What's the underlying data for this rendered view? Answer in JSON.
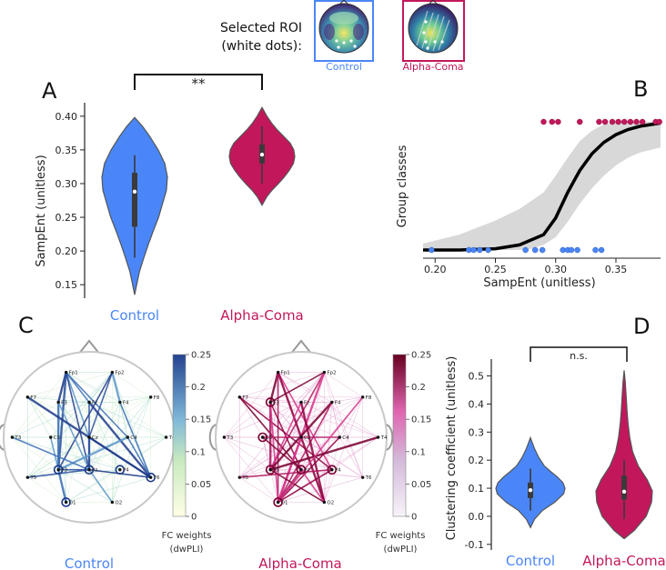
{
  "roi": {
    "title_line1": "Selected ROI",
    "title_line2": "(white dots):",
    "control_label": "Control",
    "coma_label": "Alpha-Coma"
  },
  "colors": {
    "control": "#4a86f7",
    "coma": "#c2185b",
    "curve": "#000000",
    "band": "#d8d8d8"
  },
  "chart_data": [
    {
      "id": "A",
      "type": "violin",
      "panel_label": "A",
      "ylabel": "SampEnt (unitless)",
      "ylim": [
        0.13,
        0.42
      ],
      "yticks": [
        0.15,
        0.2,
        0.25,
        0.3,
        0.35,
        0.4
      ],
      "ytick_labels": [
        "0.15",
        "0.20",
        "0.25",
        "0.30",
        "0.35",
        "0.40"
      ],
      "categories": [
        "Control",
        "Alpha-Coma"
      ],
      "significance": "**",
      "series": [
        {
          "name": "Control",
          "min": 0.135,
          "max": 0.398,
          "whisker_low": 0.19,
          "whisker_high": 0.342,
          "q1": 0.236,
          "q3": 0.316,
          "median": 0.288,
          "density": [
            [
              0.135,
              0
            ],
            [
              0.15,
              0.06
            ],
            [
              0.17,
              0.15
            ],
            [
              0.19,
              0.28
            ],
            [
              0.21,
              0.42
            ],
            [
              0.23,
              0.57
            ],
            [
              0.25,
              0.73
            ],
            [
              0.27,
              0.85
            ],
            [
              0.29,
              0.97
            ],
            [
              0.31,
              1.0
            ],
            [
              0.33,
              0.92
            ],
            [
              0.35,
              0.72
            ],
            [
              0.37,
              0.46
            ],
            [
              0.385,
              0.24
            ],
            [
              0.398,
              0
            ]
          ]
        },
        {
          "name": "Alpha-Coma",
          "min": 0.268,
          "max": 0.413,
          "whisker_low": 0.3,
          "whisker_high": 0.385,
          "q1": 0.33,
          "q3": 0.358,
          "median": 0.343,
          "density": [
            [
              0.268,
              0
            ],
            [
              0.28,
              0.14
            ],
            [
              0.29,
              0.3
            ],
            [
              0.3,
              0.5
            ],
            [
              0.31,
              0.68
            ],
            [
              0.32,
              0.84
            ],
            [
              0.33,
              0.96
            ],
            [
              0.34,
              1.0
            ],
            [
              0.35,
              0.97
            ],
            [
              0.36,
              0.86
            ],
            [
              0.37,
              0.66
            ],
            [
              0.38,
              0.46
            ],
            [
              0.39,
              0.29
            ],
            [
              0.4,
              0.15
            ],
            [
              0.413,
              0
            ]
          ]
        }
      ]
    },
    {
      "id": "B",
      "type": "logistic",
      "panel_label": "B",
      "xlabel": "SampEnt (unitless)",
      "ylabel": "Group classes",
      "xlim": [
        0.19,
        0.387
      ],
      "xticks": [
        0.2,
        0.25,
        0.3,
        0.35
      ],
      "xtick_labels": [
        "0.20",
        "0.25",
        "0.30",
        "0.35"
      ],
      "curve": [
        [
          0.19,
          0.0
        ],
        [
          0.22,
          0.0
        ],
        [
          0.25,
          0.01
        ],
        [
          0.27,
          0.04
        ],
        [
          0.29,
          0.12
        ],
        [
          0.3,
          0.25
        ],
        [
          0.31,
          0.45
        ],
        [
          0.32,
          0.62
        ],
        [
          0.33,
          0.75
        ],
        [
          0.34,
          0.84
        ],
        [
          0.35,
          0.9
        ],
        [
          0.36,
          0.94
        ],
        [
          0.37,
          0.965
        ],
        [
          0.387,
          0.99
        ]
      ],
      "band_upper": [
        [
          0.19,
          0.05
        ],
        [
          0.22,
          0.12
        ],
        [
          0.25,
          0.23
        ],
        [
          0.27,
          0.32
        ],
        [
          0.29,
          0.45
        ],
        [
          0.3,
          0.58
        ],
        [
          0.31,
          0.72
        ],
        [
          0.32,
          0.85
        ],
        [
          0.33,
          0.93
        ],
        [
          0.34,
          0.98
        ],
        [
          0.35,
          1.0
        ],
        [
          0.387,
          1.0
        ]
      ],
      "band_lower": [
        [
          0.19,
          0.0
        ],
        [
          0.25,
          0.0
        ],
        [
          0.27,
          0.0
        ],
        [
          0.28,
          0.01
        ],
        [
          0.29,
          0.04
        ],
        [
          0.3,
          0.1
        ],
        [
          0.31,
          0.22
        ],
        [
          0.32,
          0.36
        ],
        [
          0.33,
          0.48
        ],
        [
          0.34,
          0.58
        ],
        [
          0.35,
          0.66
        ],
        [
          0.36,
          0.72
        ],
        [
          0.37,
          0.76
        ],
        [
          0.387,
          0.8
        ]
      ],
      "control_points": [
        0.197,
        0.228,
        0.232,
        0.237,
        0.244,
        0.275,
        0.283,
        0.289,
        0.306,
        0.31,
        0.313,
        0.318,
        0.333,
        0.338
      ],
      "coma_points": [
        0.29,
        0.297,
        0.302,
        0.32,
        0.336,
        0.341,
        0.347,
        0.352,
        0.357,
        0.362,
        0.367,
        0.372,
        0.383,
        0.386
      ]
    },
    {
      "id": "C",
      "type": "network",
      "panel_label": "C",
      "colorbar_ticks": [
        "0.25",
        "0.2",
        "0.15",
        "0.1",
        "0.05",
        "0"
      ],
      "colorbar_label_line1": "FC weights",
      "colorbar_label_line2": "(dwPLI)",
      "titles": [
        "Control",
        "Alpha-Coma"
      ],
      "electrodes": [
        "Fp1",
        "Fp2",
        "F7",
        "F3",
        "Fz",
        "F4",
        "F8",
        "T3",
        "C3",
        "Cz",
        "C4",
        "T4",
        "T5",
        "P3",
        "Pz",
        "P4",
        "T6",
        "O1",
        "O2"
      ],
      "control_roi": [
        "P3",
        "Pz",
        "P4",
        "T6",
        "O1"
      ],
      "coma_roi": [
        "F3",
        "C3",
        "P3",
        "Pz",
        "P4",
        "O1"
      ],
      "control_strong_edges": [
        [
          "Fp1",
          "F3"
        ],
        [
          "Fp1",
          "Fz"
        ],
        [
          "Fp1",
          "Cz"
        ],
        [
          "Fp1",
          "P3"
        ],
        [
          "Fp1",
          "Pz"
        ],
        [
          "Fp1",
          "C4"
        ],
        [
          "Fp2",
          "F4"
        ],
        [
          "Fp2",
          "Cz"
        ],
        [
          "Fp2",
          "P3"
        ],
        [
          "F3",
          "P3"
        ],
        [
          "F3",
          "Pz"
        ],
        [
          "Fz",
          "Pz"
        ],
        [
          "Fz",
          "T6"
        ],
        [
          "F4",
          "T6"
        ],
        [
          "C3",
          "P3"
        ],
        [
          "Cz",
          "Pz"
        ],
        [
          "Cz",
          "T6"
        ],
        [
          "C4",
          "T6"
        ],
        [
          "C4",
          "P3"
        ],
        [
          "P3",
          "Pz"
        ],
        [
          "Pz",
          "T6"
        ],
        [
          "P3",
          "O1"
        ],
        [
          "Pz",
          "O2"
        ],
        [
          "T5",
          "Pz"
        ],
        [
          "F7",
          "T6"
        ],
        [
          "T3",
          "Pz"
        ]
      ],
      "coma_strong_edges": [
        [
          "Fp1",
          "F3"
        ],
        [
          "Fp1",
          "O1"
        ],
        [
          "Fp1",
          "P4"
        ],
        [
          "Fp1",
          "O2"
        ],
        [
          "Fp2",
          "F3"
        ],
        [
          "Fp2",
          "P3"
        ],
        [
          "Fp2",
          "O1"
        ],
        [
          "F7",
          "P4"
        ],
        [
          "F7",
          "Pz"
        ],
        [
          "F3",
          "P3"
        ],
        [
          "F3",
          "O1"
        ],
        [
          "F3",
          "Pz"
        ],
        [
          "F4",
          "P3"
        ],
        [
          "F4",
          "O1"
        ],
        [
          "Fz",
          "P3"
        ],
        [
          "Fz",
          "O2"
        ],
        [
          "C3",
          "Pz"
        ],
        [
          "C3",
          "C4"
        ],
        [
          "Cz",
          "O1"
        ],
        [
          "C4",
          "O1"
        ],
        [
          "P3",
          "O2"
        ],
        [
          "Pz",
          "O1"
        ],
        [
          "Pz",
          "O2"
        ],
        [
          "P4",
          "O1"
        ],
        [
          "T4",
          "P3"
        ],
        [
          "T5",
          "P4"
        ],
        [
          "F8",
          "O1"
        ]
      ]
    },
    {
      "id": "D",
      "type": "violin",
      "panel_label": "D",
      "ylabel": "Clustering coefficient (unitless)",
      "ylim": [
        -0.12,
        0.56
      ],
      "yticks": [
        -0.1,
        0.0,
        0.1,
        0.2,
        0.3,
        0.4,
        0.5
      ],
      "ytick_labels": [
        "-0.1",
        "0.0",
        "0.1",
        "0.2",
        "0.3",
        "0.4",
        "0.5"
      ],
      "categories": [
        "Control",
        "Alpha-Coma"
      ],
      "significance": "n.s.",
      "series": [
        {
          "name": "Control",
          "min": -0.04,
          "max": 0.28,
          "whisker_low": 0.02,
          "whisker_high": 0.17,
          "q1": 0.065,
          "q3": 0.12,
          "median": 0.093,
          "density": [
            [
              -0.04,
              0
            ],
            [
              -0.01,
              0.12
            ],
            [
              0.02,
              0.34
            ],
            [
              0.05,
              0.7
            ],
            [
              0.08,
              0.96
            ],
            [
              0.1,
              1.0
            ],
            [
              0.12,
              0.94
            ],
            [
              0.14,
              0.78
            ],
            [
              0.16,
              0.58
            ],
            [
              0.18,
              0.4
            ],
            [
              0.21,
              0.24
            ],
            [
              0.24,
              0.12
            ],
            [
              0.28,
              0
            ]
          ]
        },
        {
          "name": "Alpha-Coma",
          "min": -0.08,
          "max": 0.52,
          "whisker_low": -0.01,
          "whisker_high": 0.2,
          "q1": 0.06,
          "q3": 0.145,
          "median": 0.088,
          "density": [
            [
              -0.08,
              0
            ],
            [
              -0.05,
              0.36
            ],
            [
              0.0,
              0.78
            ],
            [
              0.05,
              0.97
            ],
            [
              0.09,
              1.0
            ],
            [
              0.13,
              0.82
            ],
            [
              0.18,
              0.5
            ],
            [
              0.23,
              0.3
            ],
            [
              0.28,
              0.2
            ],
            [
              0.33,
              0.14
            ],
            [
              0.38,
              0.1
            ],
            [
              0.43,
              0.07
            ],
            [
              0.48,
              0.04
            ],
            [
              0.52,
              0
            ]
          ]
        }
      ]
    }
  ]
}
